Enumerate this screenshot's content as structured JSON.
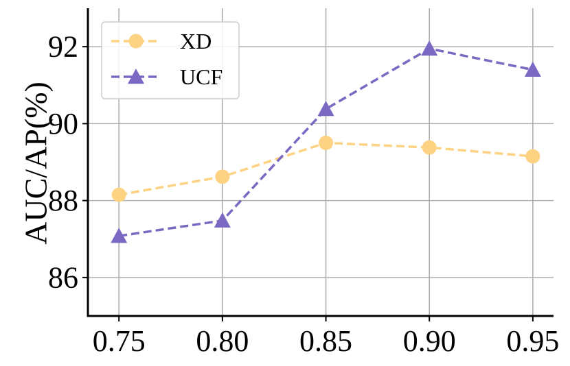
{
  "chart_data": {
    "type": "line",
    "title": "",
    "xlabel": "",
    "ylabel": "AUC/AP(%)",
    "x": [
      0.75,
      0.8,
      0.85,
      0.9,
      0.95
    ],
    "x_tick_labels": [
      "0.75",
      "0.80",
      "0.85",
      "0.90",
      "0.95"
    ],
    "xlim": [
      0.735,
      0.96
    ],
    "ylim": [
      85.0,
      93.0
    ],
    "y_ticks": [
      86,
      88,
      90,
      92
    ],
    "grid": true,
    "legend_position": "top-left",
    "series": [
      {
        "name": "XD",
        "values": [
          88.15,
          88.62,
          89.5,
          89.38,
          89.15
        ],
        "color": "#FDD282",
        "marker": "circle",
        "linestyle": "dashed"
      },
      {
        "name": "UCF",
        "values": [
          87.08,
          87.48,
          90.38,
          91.95,
          91.4
        ],
        "color": "#7B68C2",
        "marker": "triangle",
        "linestyle": "dashed"
      }
    ]
  }
}
